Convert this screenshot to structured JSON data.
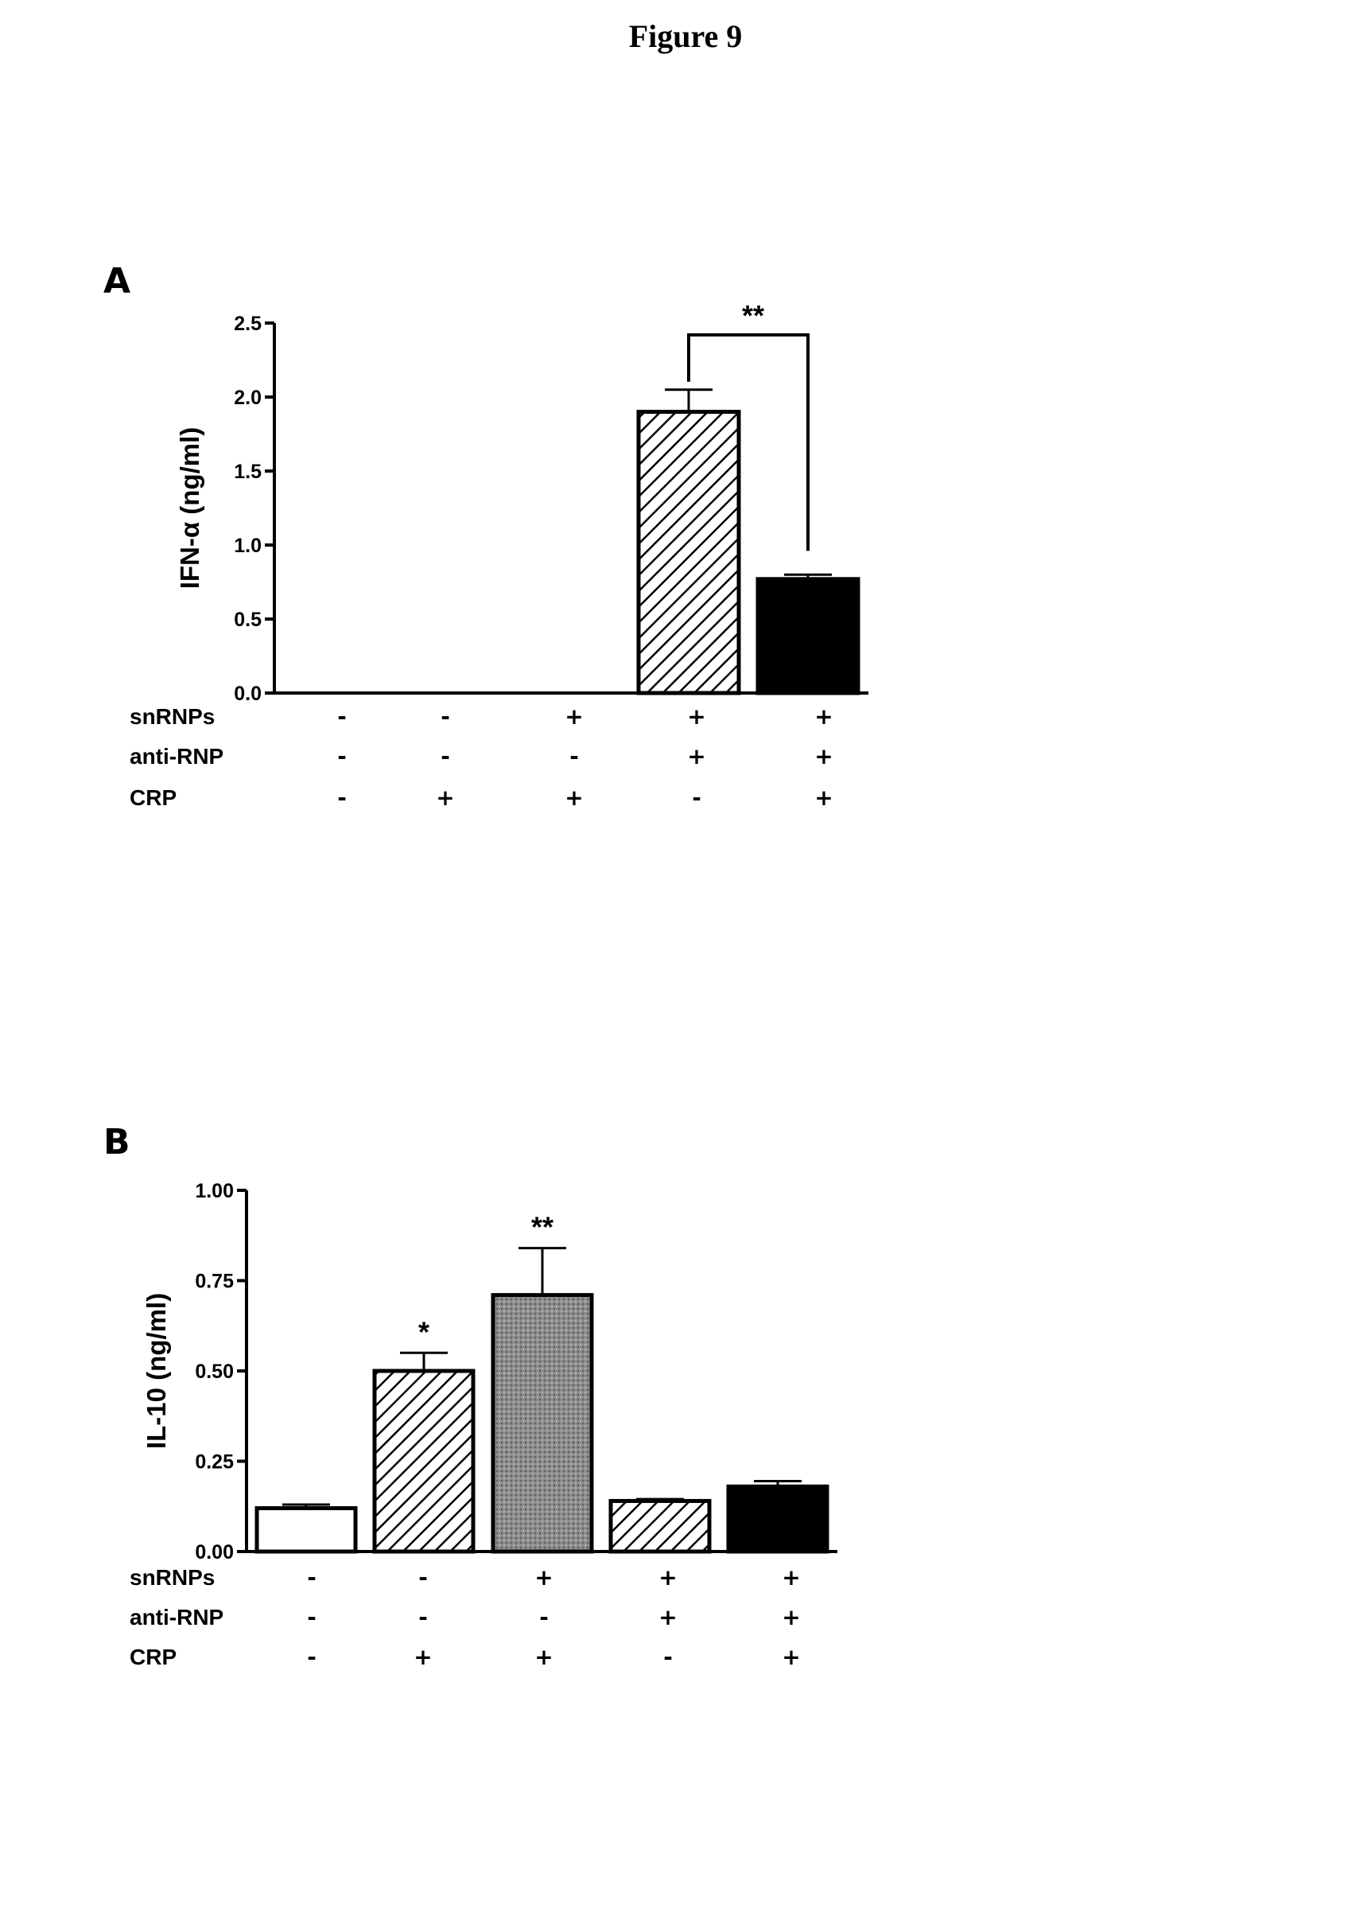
{
  "figure_title": "Figure 9",
  "chart_data": [
    {
      "type": "bar",
      "panel_label": "A",
      "ylabel": "IFN-α (ng/ml)",
      "ylim": [
        0,
        2.5
      ],
      "yticks": [
        "0.0",
        "0.5",
        "1.0",
        "1.5",
        "2.0",
        "2.5"
      ],
      "yticks_values": [
        0,
        0.5,
        1.0,
        1.5,
        2.0,
        2.5
      ],
      "categories": [
        "1",
        "2",
        "3",
        "4",
        "5"
      ],
      "values": [
        0,
        0,
        0,
        1.9,
        0.77
      ],
      "errors": [
        0,
        0,
        0,
        0.15,
        0.03
      ],
      "fills": [
        "white",
        "white",
        "white",
        "hatch",
        "black"
      ],
      "conditions": [
        {
          "label": "snRNPs",
          "values": [
            "-",
            "-",
            "+",
            "+",
            "+"
          ]
        },
        {
          "label": "anti-RNP",
          "values": [
            "-",
            "-",
            "-",
            "+",
            "+"
          ]
        },
        {
          "label": "CRP",
          "values": [
            "-",
            "+",
            "+",
            "-",
            "+"
          ]
        }
      ],
      "annotations": [
        {
          "type": "bracket",
          "from": 3,
          "to": 4,
          "text": "**"
        }
      ],
      "grid": false,
      "legend": "none"
    },
    {
      "type": "bar",
      "panel_label": "B",
      "ylabel": "IL-10 (ng/ml)",
      "ylim": [
        0,
        1.0
      ],
      "yticks": [
        "0.00",
        "0.25",
        "0.50",
        "0.75",
        "1.00"
      ],
      "yticks_values": [
        0,
        0.25,
        0.5,
        0.75,
        1.0
      ],
      "categories": [
        "1",
        "2",
        "3",
        "4",
        "5"
      ],
      "values": [
        0.12,
        0.5,
        0.71,
        0.14,
        0.18
      ],
      "errors": [
        0.01,
        0.05,
        0.13,
        0.005,
        0.015
      ],
      "fills": [
        "white",
        "hatch",
        "gray",
        "hatch",
        "black"
      ],
      "conditions": [
        {
          "label": "snRNPs",
          "values": [
            "-",
            "-",
            "+",
            "+",
            "+"
          ]
        },
        {
          "label": "anti-RNP",
          "values": [
            "-",
            "-",
            "-",
            "+",
            "+"
          ]
        },
        {
          "label": "CRP",
          "values": [
            "-",
            "+",
            "+",
            "-",
            "+"
          ]
        }
      ],
      "annotations": [
        {
          "type": "star",
          "bar": 1,
          "text": "*"
        },
        {
          "type": "star",
          "bar": 2,
          "text": "**"
        }
      ],
      "grid": false,
      "legend": "none"
    }
  ]
}
